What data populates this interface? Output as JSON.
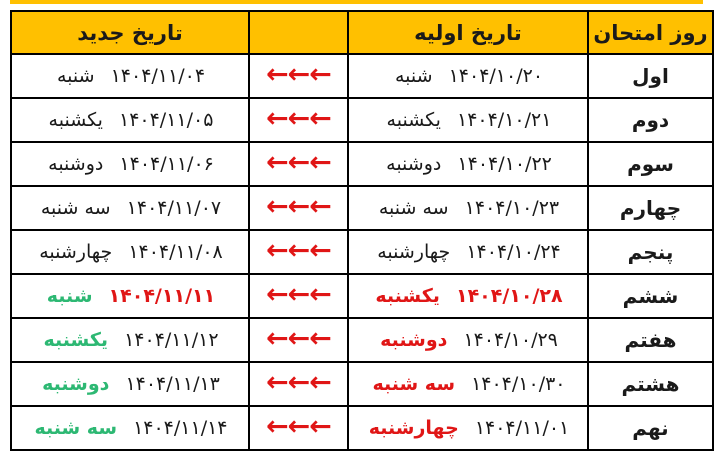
{
  "colors": {
    "header_bg": "#ffc000",
    "red": "#e01616",
    "green": "#2db873",
    "text": "#1a1a1a",
    "border": "#000000"
  },
  "table": {
    "headers": {
      "exam_day": "روز امتحان",
      "initial_date": "تاریخ اولیه",
      "arrows": "",
      "new_date": "تاریخ جدید"
    },
    "arrow_glyph": "←←←",
    "rows": [
      {
        "exam_day": "اول",
        "initial": {
          "date": "۱۴۰۴/۱۰/۲۰",
          "day": "شنبه",
          "date_color": "black",
          "day_color": "black"
        },
        "new": {
          "date": "۱۴۰۴/۱۱/۰۴",
          "day": "شنبه",
          "date_color": "black",
          "day_color": "black"
        }
      },
      {
        "exam_day": "دوم",
        "initial": {
          "date": "۱۴۰۴/۱۰/۲۱",
          "day": "یکشنبه",
          "date_color": "black",
          "day_color": "black"
        },
        "new": {
          "date": "۱۴۰۴/۱۱/۰۵",
          "day": "یکشنبه",
          "date_color": "black",
          "day_color": "black"
        }
      },
      {
        "exam_day": "سوم",
        "initial": {
          "date": "۱۴۰۴/۱۰/۲۲",
          "day": "دوشنبه",
          "date_color": "black",
          "day_color": "black"
        },
        "new": {
          "date": "۱۴۰۴/۱۱/۰۶",
          "day": "دوشنبه",
          "date_color": "black",
          "day_color": "black"
        }
      },
      {
        "exam_day": "چهارم",
        "initial": {
          "date": "۱۴۰۴/۱۰/۲۳",
          "day": "سه شنبه",
          "date_color": "black",
          "day_color": "black"
        },
        "new": {
          "date": "۱۴۰۴/۱۱/۰۷",
          "day": "سه شنبه",
          "date_color": "black",
          "day_color": "black"
        }
      },
      {
        "exam_day": "پنجم",
        "initial": {
          "date": "۱۴۰۴/۱۰/۲۴",
          "day": "چهارشنبه",
          "date_color": "black",
          "day_color": "black"
        },
        "new": {
          "date": "۱۴۰۴/۱۱/۰۸",
          "day": "چهارشنبه",
          "date_color": "black",
          "day_color": "black"
        }
      },
      {
        "exam_day": "ششم",
        "initial": {
          "date": "۱۴۰۴/۱۰/۲۸",
          "day": "یکشنبه",
          "date_color": "red",
          "day_color": "red"
        },
        "new": {
          "date": "۱۴۰۴/۱۱/۱۱",
          "day": "شنبه",
          "date_color": "red",
          "day_color": "green"
        }
      },
      {
        "exam_day": "هفتم",
        "initial": {
          "date": "۱۴۰۴/۱۰/۲۹",
          "day": "دوشنبه",
          "date_color": "black",
          "day_color": "red"
        },
        "new": {
          "date": "۱۴۰۴/۱۱/۱۲",
          "day": "یکشنبه",
          "date_color": "black",
          "day_color": "green"
        }
      },
      {
        "exam_day": "هشتم",
        "initial": {
          "date": "۱۴۰۴/۱۰/۳۰",
          "day": "سه شنبه",
          "date_color": "black",
          "day_color": "red"
        },
        "new": {
          "date": "۱۴۰۴/۱۱/۱۳",
          "day": "دوشنبه",
          "date_color": "black",
          "day_color": "green"
        }
      },
      {
        "exam_day": "نهم",
        "initial": {
          "date": "۱۴۰۴/۱۱/۰۱",
          "day": "چهارشنبه",
          "date_color": "black",
          "day_color": "red"
        },
        "new": {
          "date": "۱۴۰۴/۱۱/۱۴",
          "day": "سه شنبه",
          "date_color": "black",
          "day_color": "green"
        }
      }
    ]
  }
}
